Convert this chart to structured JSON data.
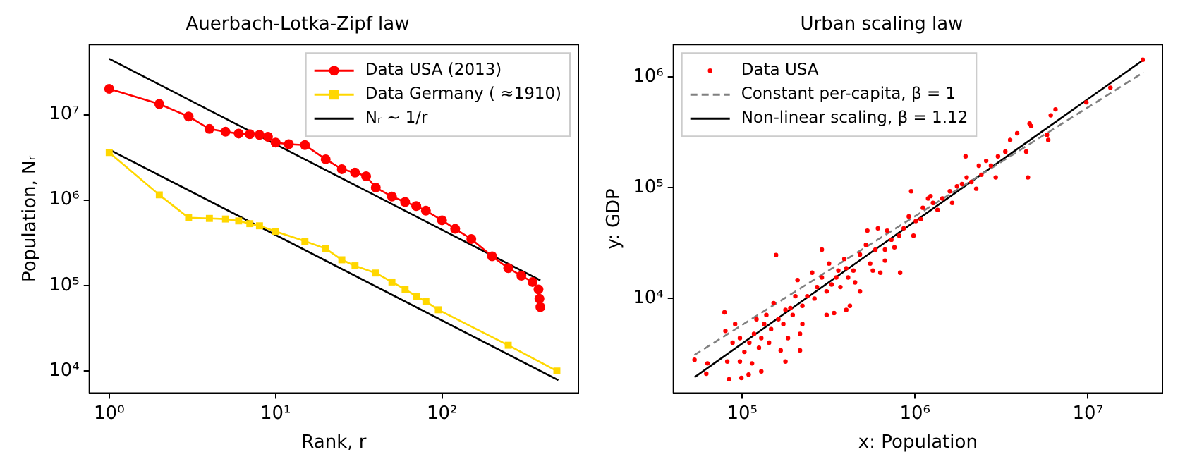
{
  "chart_data": [
    {
      "type": "line",
      "title": "Auerbach-Lotka-Zipf law",
      "xlabel": "Rank, r",
      "ylabel": "Population, Nᵣ",
      "log": "xy",
      "legend": "top right",
      "xlim": [
        0.76,
        660
      ],
      "ylim": [
        5500,
        66000000
      ],
      "xticks": [
        {
          "value": 1,
          "label": "10⁰"
        },
        {
          "value": 10,
          "label": "10¹"
        },
        {
          "value": 100,
          "label": "10²"
        }
      ],
      "yticks": [
        {
          "value": 10000,
          "label": "10⁴"
        },
        {
          "value": 100000,
          "label": "10⁵"
        },
        {
          "value": 1000000,
          "label": "10⁶"
        },
        {
          "value": 10000000,
          "label": "10⁷"
        }
      ],
      "series": [
        {
          "name": "Data USA (2013)",
          "color": "#ff0000",
          "marker": "circle",
          "x": [
            1,
            2,
            3,
            4,
            5,
            6,
            7,
            8,
            9,
            10,
            12,
            15,
            20,
            25,
            30,
            35,
            40,
            50,
            60,
            70,
            80,
            100,
            120,
            150,
            200,
            250,
            300,
            350,
            380,
            385,
            390
          ],
          "values": [
            20000000,
            13300000,
            9500000,
            6800000,
            6300000,
            6000000,
            5900000,
            5800000,
            5500000,
            4700000,
            4500000,
            4400000,
            3000000,
            2300000,
            2100000,
            1900000,
            1400000,
            1100000,
            950000,
            850000,
            750000,
            580000,
            460000,
            350000,
            220000,
            160000,
            130000,
            110000,
            90000,
            70000,
            56000
          ]
        },
        {
          "name": "Data Germany ( ≈1910)",
          "color": "#ffd700",
          "marker": "square",
          "x": [
            1,
            2,
            3,
            4,
            5,
            6,
            7,
            8,
            10,
            15,
            20,
            25,
            30,
            40,
            50,
            60,
            70,
            80,
            95,
            250,
            490
          ],
          "values": [
            3600000,
            1150000,
            620000,
            610000,
            600000,
            570000,
            530000,
            500000,
            430000,
            330000,
            270000,
            200000,
            170000,
            140000,
            110000,
            90000,
            75000,
            65000,
            52000,
            20000,
            10000
          ]
        },
        {
          "name": "Nᵣ ∼ 1/r",
          "color": "#000000",
          "marker": "none",
          "x": [
            1,
            390
          ],
          "values": [
            45000000,
            115000
          ]
        },
        {
          "color": "#000000",
          "marker": "none",
          "x": [
            1,
            500
          ],
          "values": [
            3900000,
            7800
          ]
        }
      ]
    },
    {
      "type": "scatter",
      "title": "Urban scaling law",
      "xlabel": "x: Population",
      "ylabel": "y: GDP",
      "log": "xy",
      "legend": "top left",
      "xlim": [
        40000,
        27000000
      ],
      "ylim": [
        1400,
        1960000
      ],
      "xticks": [
        {
          "value": 100000,
          "label": "10⁵"
        },
        {
          "value": 1000000,
          "label": "10⁶"
        },
        {
          "value": 10000000,
          "label": "10⁷"
        }
      ],
      "yticks": [
        {
          "value": 10000,
          "label": "10⁴"
        },
        {
          "value": 100000,
          "label": "10⁵"
        },
        {
          "value": 1000000,
          "label": "10⁶"
        }
      ],
      "series": [
        {
          "name": "Data USA",
          "color": "#ff0000",
          "marker": "circle",
          "x": [
            53000,
            62000,
            63000,
            79000,
            80000,
            82000,
            84000,
            91000,
            97000,
            97000,
            99000,
            109000,
            103000,
            110000,
            117000,
            121000,
            125000,
            129000,
            134000,
            138000,
            143000,
            147000,
            152000,
            157000,
            162000,
            167000,
            173000,
            178000,
            184000,
            190000,
            196000,
            203000,
            209000,
            216000,
            223000,
            238000,
            254000,
            262000,
            271000,
            289000,
            308000,
            318000,
            329000,
            340000,
            350000,
            360000,
            370000,
            390000,
            400000,
            410000,
            420000,
            440000,
            450000,
            480000,
            520000,
            530000,
            550000,
            570000,
            590000,
            610000,
            630000,
            670000,
            690000,
            730000,
            760000,
            810000,
            820000,
            860000,
            920000,
            950000,
            980000,
            1010000,
            1080000,
            1110000,
            1190000,
            1230000,
            1270000,
            1350000,
            1440000,
            1590000,
            1640000,
            1750000,
            1870000,
            1960000,
            1990000,
            2120000,
            2260000,
            2340000,
            2420000,
            2580000,
            2750000,
            2930000,
            3020000,
            3330000,
            3550000,
            3900000,
            4400000,
            4500000,
            4600000,
            4700000,
            5800000,
            5900000,
            6100000,
            6500000,
            9800000,
            13500000,
            20800000,
            216000,
            178000,
            114000,
            88000,
            289000,
            400000,
            670000,
            129000,
            223000,
            308000,
            480000
          ],
          "values": [
            2800,
            2100,
            2600,
            7500,
            5100,
            2700,
            1870,
            5900,
            4400,
            2700,
            1920,
            2060,
            3300,
            4000,
            4800,
            6500,
            3600,
            4400,
            5900,
            7100,
            4000,
            5300,
            9100,
            24700,
            6500,
            3400,
            5900,
            7900,
            4400,
            8200,
            7100,
            10500,
            14700,
            4800,
            8600,
            10500,
            17100,
            10000,
            12700,
            15500,
            11600,
            20700,
            13400,
            7400,
            15500,
            17900,
            12700,
            22800,
            18800,
            15500,
            8600,
            17900,
            14000,
            25000,
            30500,
            41000,
            20700,
            17900,
            27700,
            43000,
            17100,
            27700,
            41000,
            34000,
            29000,
            37000,
            17100,
            43000,
            55000,
            93000,
            37000,
            50000,
            52000,
            66000,
            80000,
            84000,
            73000,
            63000,
            80000,
            93000,
            73000,
            103000,
            108000,
            192000,
            124000,
            113000,
            98000,
            158000,
            131000,
            175000,
            158000,
            124000,
            192000,
            212000,
            270000,
            310000,
            212000,
            124000,
            380000,
            360000,
            300000,
            270000,
            450000,
            510000,
            590000,
            800000,
            1430000,
            3400,
            2700,
            2600,
            4000,
            27700,
            7900,
            22000,
            2200,
            5900,
            7100,
            11600
          ]
        },
        {
          "name": "Constant per-capita, β = 1",
          "color": "#808080",
          "marker": "none",
          "line_style": "dashed",
          "type": "line",
          "x": [
            53000,
            21000000
          ],
          "values": [
            3100,
            1100000
          ]
        },
        {
          "name": "Non-linear scaling, β = 1.12",
          "color": "#000000",
          "marker": "none",
          "type": "line",
          "x": [
            53000,
            21000000
          ],
          "values": [
            1950,
            1430000
          ]
        }
      ]
    }
  ]
}
